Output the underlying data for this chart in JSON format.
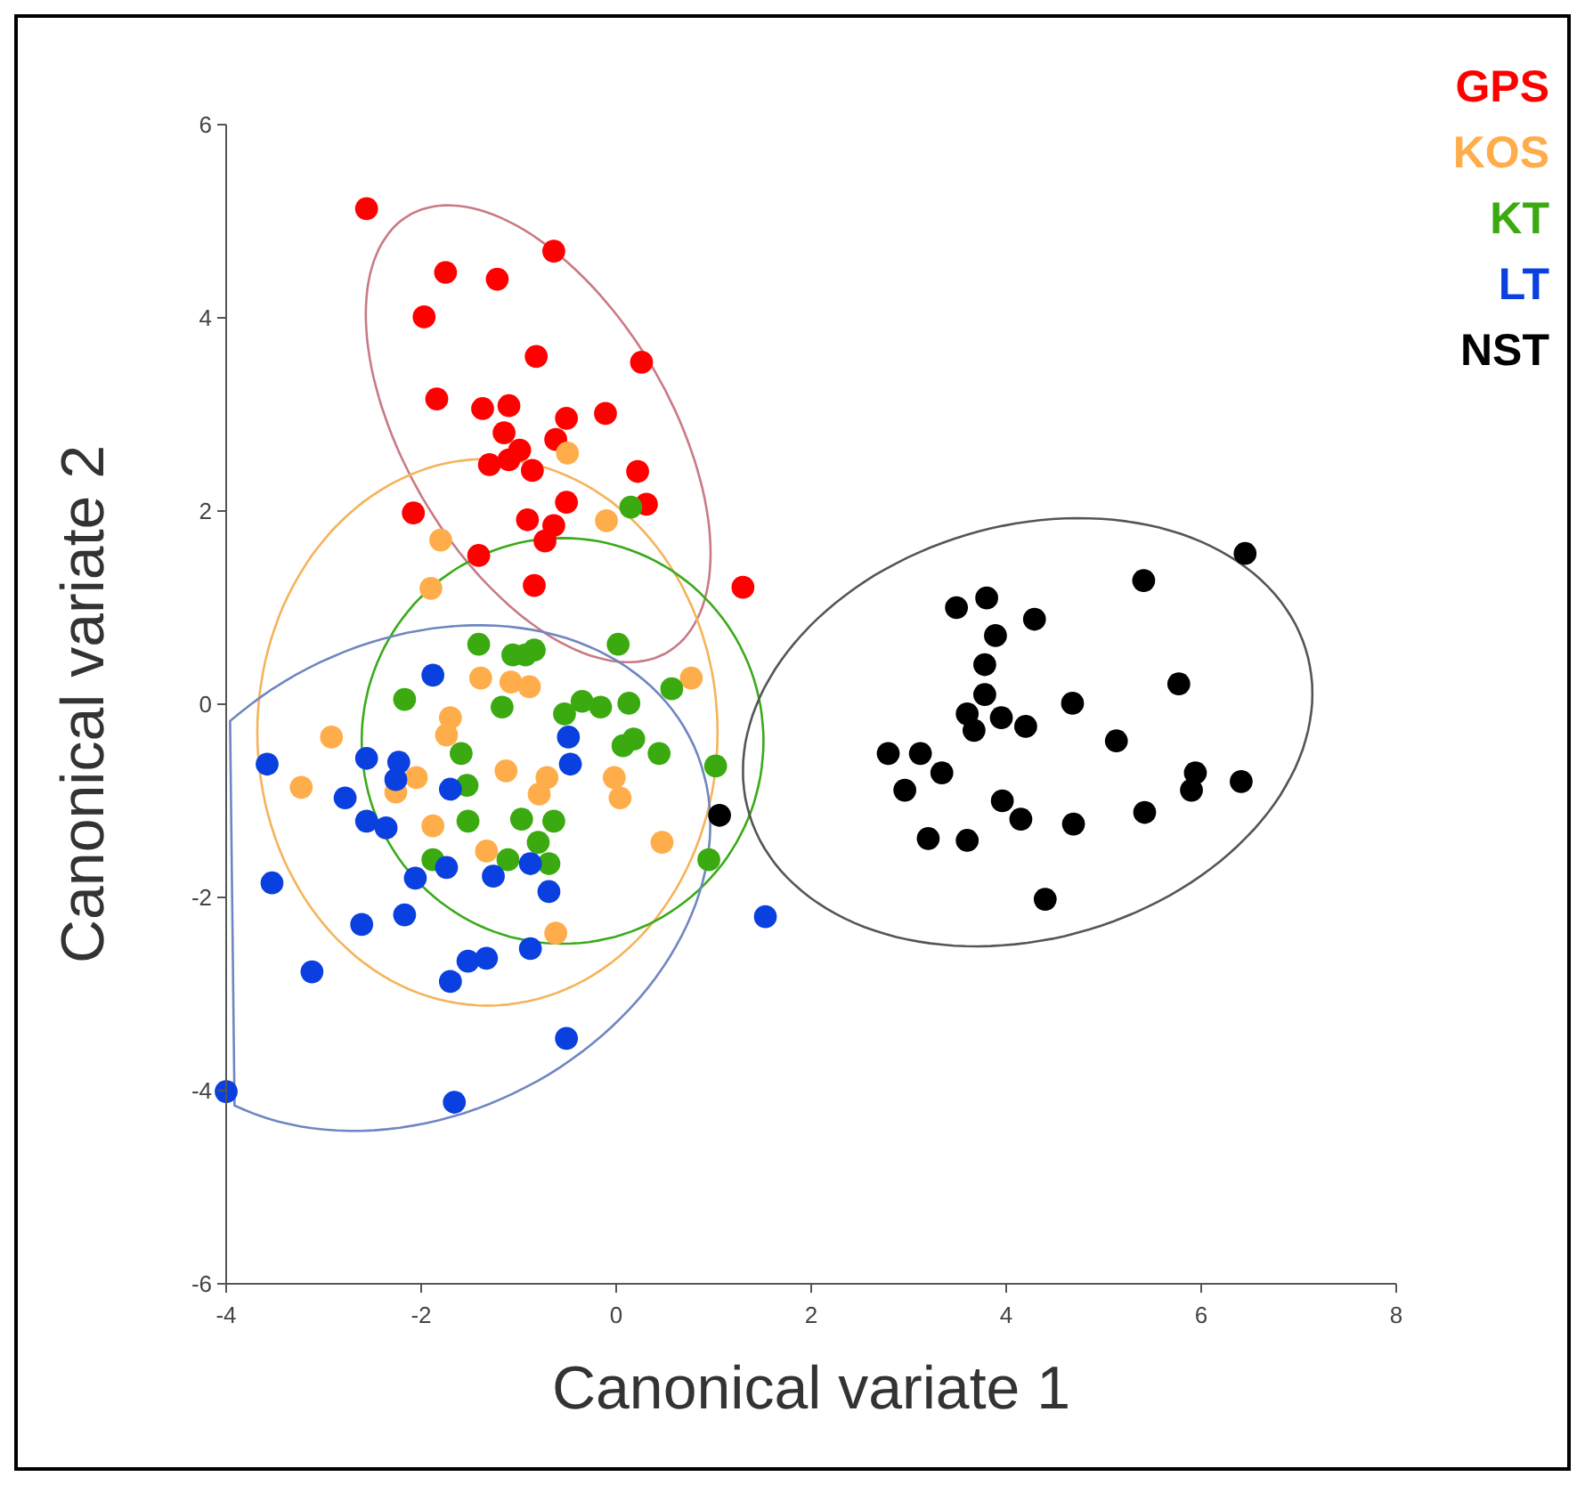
{
  "chart_data": {
    "type": "scatter",
    "xlabel": "Canonical variate 1",
    "ylabel": "Canonical variate 2",
    "xlim": [
      -4,
      8
    ],
    "ylim": [
      -6,
      6
    ],
    "xticks": [
      -4,
      -2,
      0,
      2,
      4,
      6,
      8
    ],
    "yticks": [
      -6,
      -4,
      -2,
      0,
      2,
      4,
      6
    ],
    "legend": "top right",
    "marker": "circle",
    "series": [
      {
        "name": "GPS",
        "color": "#ff0000",
        "x": [
          -2.56,
          -0.64,
          -1.75,
          -1.22,
          -1.97,
          -0.82,
          0.26,
          -1.84,
          -1.37,
          -1.1,
          -0.51,
          -0.11,
          -1.15,
          -0.62,
          -0.99,
          -1.3,
          -1.1,
          -0.86,
          0.22,
          -0.51,
          0.31,
          -2.08,
          -0.91,
          -0.64,
          -0.73,
          -1.41,
          -0.84,
          1.3
        ],
        "values": [
          5.13,
          4.69,
          4.47,
          4.4,
          4.01,
          3.6,
          3.54,
          3.16,
          3.06,
          3.09,
          2.96,
          3.01,
          2.81,
          2.74,
          2.63,
          2.48,
          2.53,
          2.42,
          2.41,
          2.09,
          2.07,
          1.98,
          1.91,
          1.85,
          1.69,
          1.54,
          1.23,
          1.21
        ]
      },
      {
        "name": "KOS",
        "color": "#ffad4a",
        "x": [
          -0.5,
          -0.1,
          -1.8,
          -1.9,
          -1.39,
          -1.08,
          -0.89,
          0.77,
          -1.7,
          -1.74,
          -2.92,
          -3.23,
          -2.05,
          -2.26,
          -1.13,
          -0.71,
          -0.79,
          -0.02,
          0.04,
          -1.88,
          -1.33,
          0.47,
          -0.62
        ],
        "values": [
          2.6,
          1.9,
          1.7,
          1.2,
          0.27,
          0.23,
          0.18,
          0.27,
          -0.14,
          -0.32,
          -0.34,
          -0.86,
          -0.76,
          -0.91,
          -0.69,
          -0.76,
          -0.93,
          -0.76,
          -0.97,
          -1.26,
          -1.52,
          -1.43,
          -2.37
        ]
      },
      {
        "name": "KT",
        "color": "#3aaa10",
        "x": [
          0.15,
          -1.41,
          -1.06,
          -0.93,
          -0.84,
          0.02,
          0.57,
          -2.17,
          -1.17,
          -0.53,
          -0.35,
          -0.16,
          0.13,
          0.18,
          0.07,
          0.44,
          1.02,
          -1.59,
          -1.53,
          -1.52,
          -0.97,
          -0.64,
          -0.8,
          -1.88,
          -1.11,
          -0.69,
          0.95
        ],
        "values": [
          2.04,
          0.62,
          0.51,
          0.51,
          0.56,
          0.62,
          0.16,
          0.05,
          -0.03,
          -0.1,
          0.03,
          -0.03,
          0.01,
          -0.36,
          -0.43,
          -0.51,
          -0.64,
          -0.51,
          -0.84,
          -1.21,
          -1.19,
          -1.21,
          -1.43,
          -1.61,
          -1.61,
          -1.65,
          -1.61
        ]
      },
      {
        "name": "LT",
        "color": "#0a3fe0",
        "x": [
          -1.88,
          -3.58,
          -2.56,
          -2.23,
          -2.26,
          -1.7,
          -0.49,
          -0.47,
          -2.78,
          -2.56,
          -2.36,
          -3.53,
          -2.06,
          -1.74,
          -1.26,
          -0.88,
          -0.69,
          -2.61,
          -2.17,
          -3.12,
          -1.52,
          -1.33,
          -1.7,
          -0.88,
          1.53,
          -0.51,
          -1.66,
          -4.0
        ],
        "values": [
          0.3,
          -0.62,
          -0.56,
          -0.6,
          -0.78,
          -0.88,
          -0.34,
          -0.62,
          -0.97,
          -1.21,
          -1.28,
          -1.85,
          -1.8,
          -1.69,
          -1.78,
          -1.65,
          -1.94,
          -2.28,
          -2.18,
          -2.77,
          -2.66,
          -2.63,
          -2.87,
          -2.53,
          -2.2,
          -3.46,
          -4.12,
          -4.01
        ]
      },
      {
        "name": "NST",
        "color": "#000000",
        "x": [
          6.45,
          5.41,
          3.49,
          3.8,
          4.29,
          3.89,
          3.78,
          3.78,
          3.6,
          3.67,
          3.95,
          4.2,
          4.68,
          5.77,
          5.13,
          2.79,
          3.12,
          3.34,
          2.96,
          3.96,
          4.15,
          4.69,
          5.42,
          5.94,
          5.9,
          6.41,
          3.2,
          3.6,
          4.4,
          1.06
        ],
        "values": [
          1.56,
          1.28,
          1.0,
          1.1,
          0.88,
          0.71,
          0.41,
          0.1,
          -0.1,
          -0.27,
          -0.14,
          -0.23,
          0.01,
          0.21,
          -0.38,
          -0.51,
          -0.51,
          -0.71,
          -0.89,
          -1.0,
          -1.19,
          -1.24,
          -1.12,
          -0.71,
          -0.89,
          -0.8,
          -1.39,
          -1.41,
          -2.02,
          -1.15
        ]
      }
    ]
  }
}
